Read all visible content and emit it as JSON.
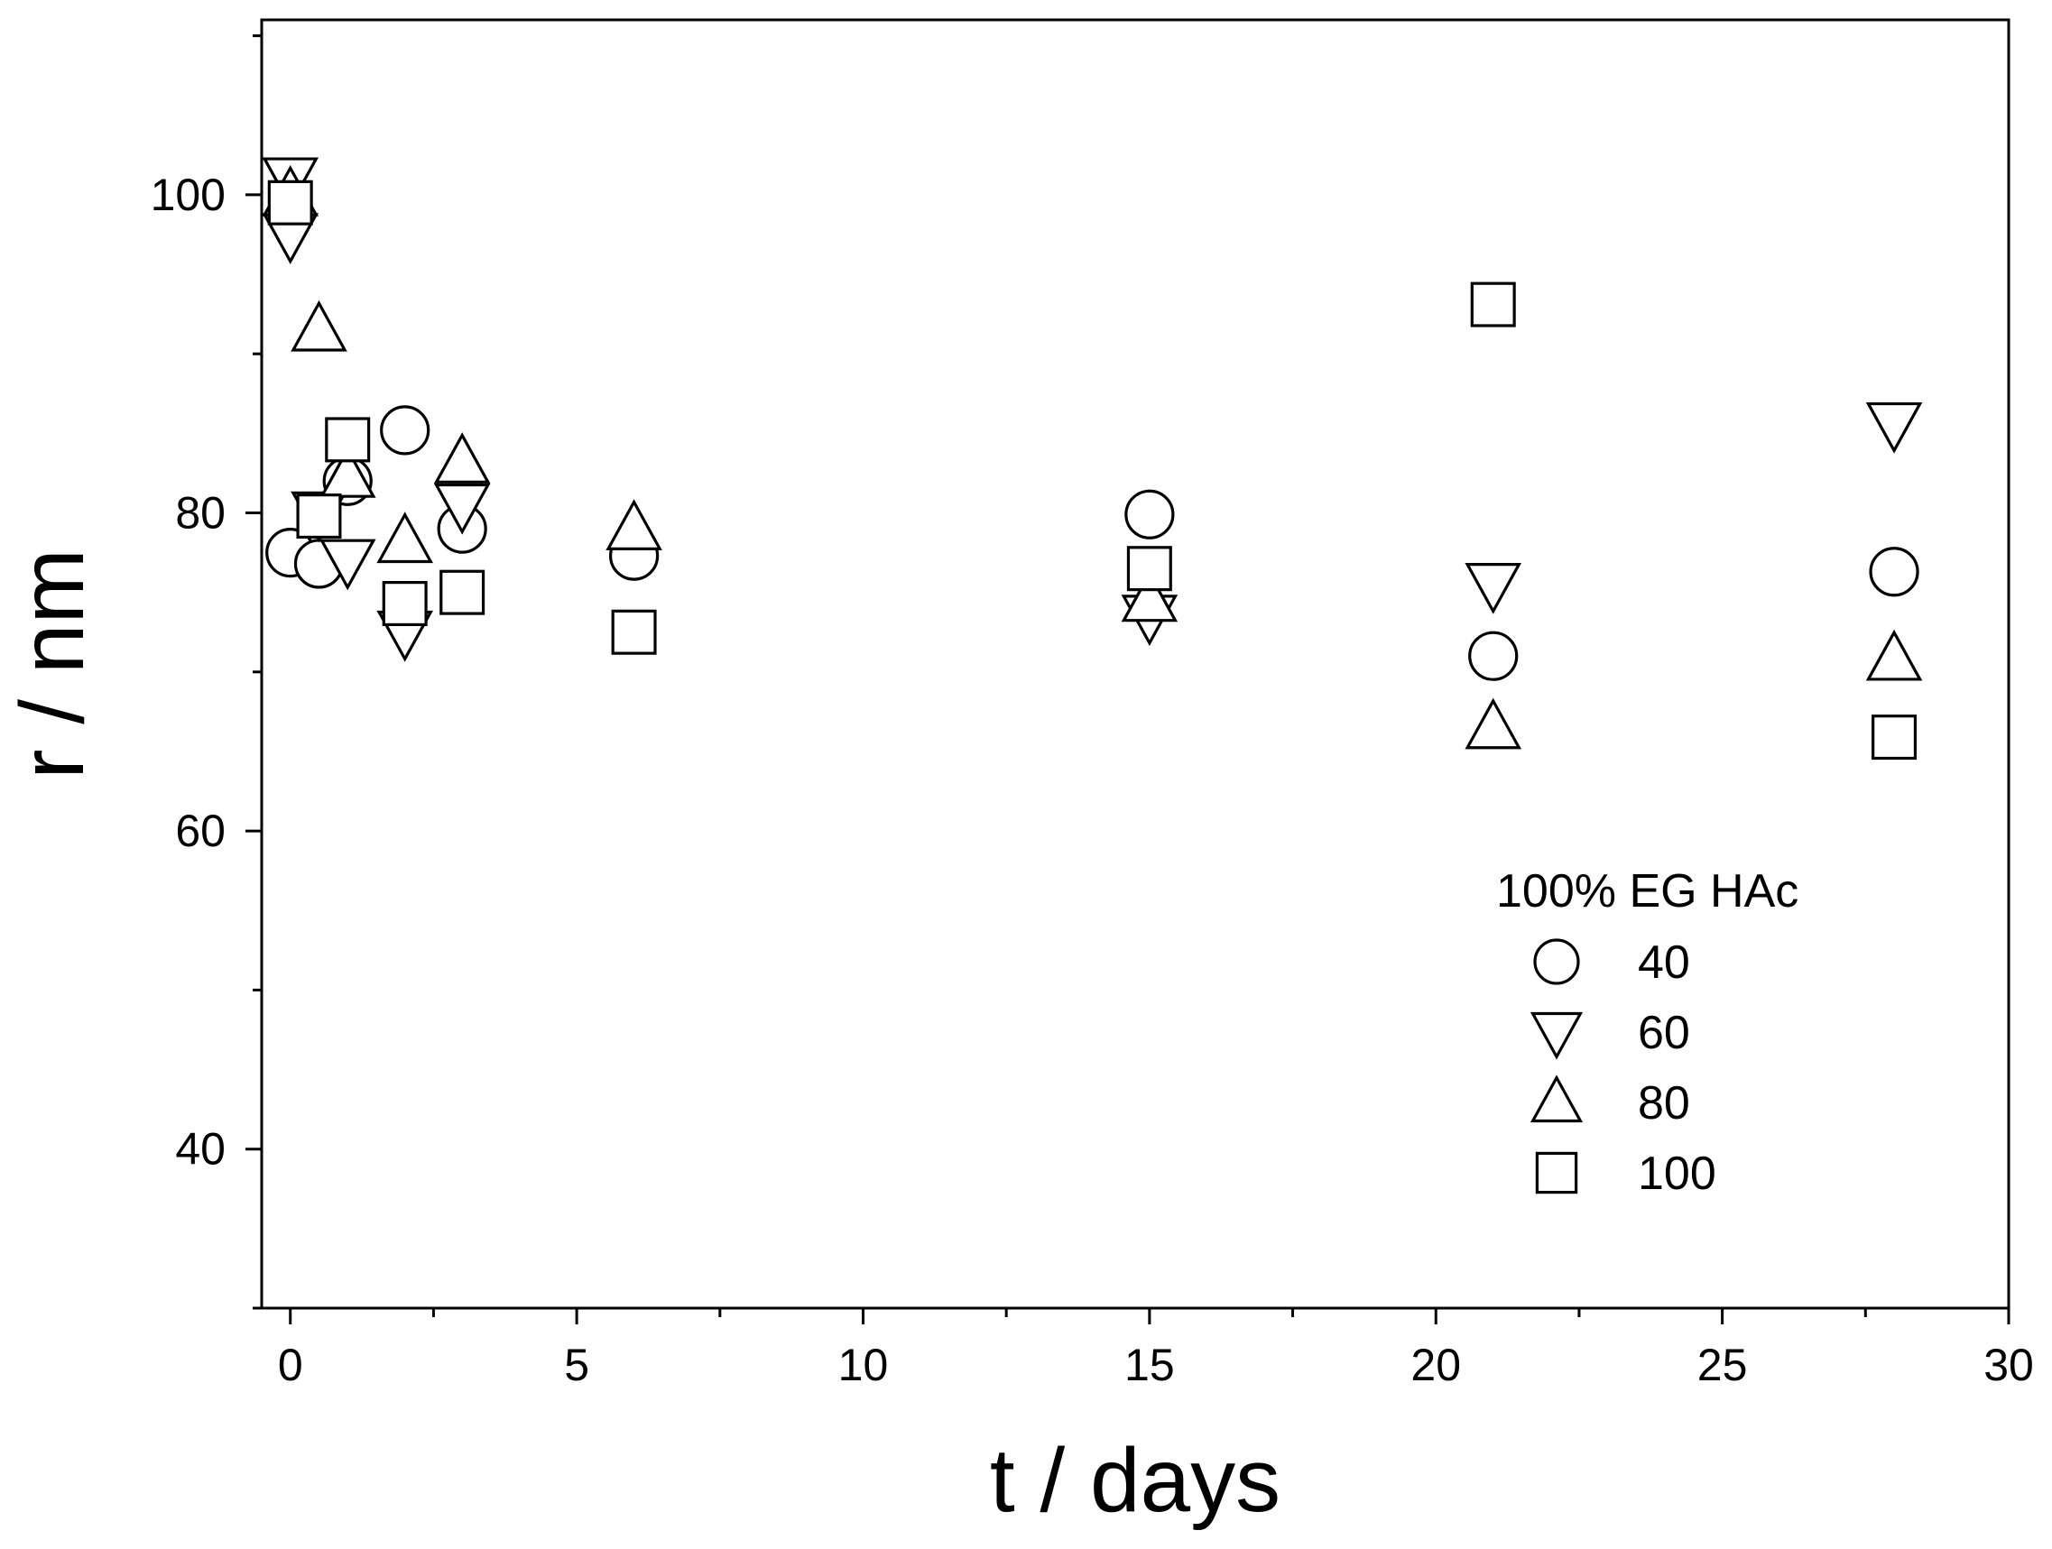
{
  "chart_data": {
    "type": "scatter",
    "title": "",
    "xlabel": "t / days",
    "ylabel": "r / nm",
    "xlim": [
      -0.5,
      30
    ],
    "ylim": [
      30,
      111
    ],
    "xticks": [
      0,
      5,
      10,
      15,
      20,
      25,
      30
    ],
    "xticks_minor": [
      2.5,
      7.5,
      12.5,
      17.5,
      22.5,
      27.5
    ],
    "yticks": [
      40,
      60,
      80,
      100
    ],
    "yticks_minor": [
      30,
      50,
      70,
      90,
      110
    ],
    "grid": false,
    "legend": {
      "title": "100% EG HAc",
      "position": "right, lower-middle"
    },
    "series": [
      {
        "name": "40",
        "marker": "circle",
        "points": [
          [
            0,
            77.5
          ],
          [
            0.5,
            76.8
          ],
          [
            1,
            82
          ],
          [
            2,
            85.2
          ],
          [
            3,
            79
          ],
          [
            6,
            77.3
          ],
          [
            15,
            79.9
          ],
          [
            21,
            71
          ],
          [
            28,
            76.3
          ]
        ]
      },
      {
        "name": "60",
        "marker": "triangle-down",
        "points": [
          [
            0,
            101
          ],
          [
            0,
            97.5
          ],
          [
            0.5,
            80
          ],
          [
            1,
            77
          ],
          [
            2,
            72.5
          ],
          [
            3,
            80.5
          ],
          [
            15,
            73.5
          ],
          [
            21,
            75.5
          ],
          [
            28,
            85.6
          ]
        ]
      },
      {
        "name": "80",
        "marker": "triangle-up",
        "points": [
          [
            0,
            100
          ],
          [
            0.5,
            91.5
          ],
          [
            1,
            82.3
          ],
          [
            2,
            78.2
          ],
          [
            3,
            83.2
          ],
          [
            6,
            79
          ],
          [
            15,
            74.5
          ],
          [
            21,
            66.5
          ],
          [
            28,
            70.8
          ]
        ]
      },
      {
        "name": "100",
        "marker": "square",
        "points": [
          [
            0,
            99.5
          ],
          [
            0.5,
            79.8
          ],
          [
            1,
            84.6
          ],
          [
            2,
            74.3
          ],
          [
            3,
            75
          ],
          [
            6,
            72.5
          ],
          [
            15,
            76.5
          ],
          [
            21,
            93.1
          ],
          [
            28,
            65.9
          ]
        ]
      }
    ]
  }
}
